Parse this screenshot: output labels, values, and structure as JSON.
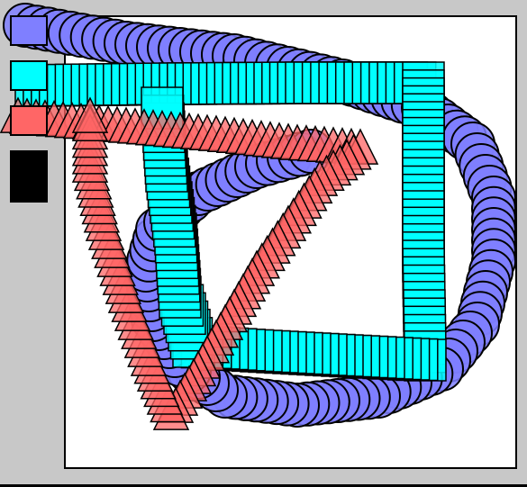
{
  "colors": {
    "background": "#c8c8c8",
    "canvas": "#ffffff",
    "circle_fill": "#7f7fff",
    "square_fill": "#00ffff",
    "triangle_fill": "#ff6666",
    "swatch_black": "#000000",
    "outline": "#000000"
  },
  "palette": {
    "swatches": [
      {
        "name": "circle-brush-swatch",
        "color": "#7f7fff",
        "shape": "square"
      },
      {
        "name": "square-brush-swatch",
        "color": "#00ffff",
        "shape": "square"
      },
      {
        "name": "triangle-brush-swatch",
        "color": "#ff6666",
        "shape": "square"
      },
      {
        "name": "black-swatch",
        "color": "#000000",
        "shape": "square"
      }
    ]
  },
  "strokes": [
    {
      "name": "circle-stroke",
      "shape": "circle"
    },
    {
      "name": "square-stroke",
      "shape": "square"
    },
    {
      "name": "triangle-stroke",
      "shape": "triangle"
    }
  ]
}
